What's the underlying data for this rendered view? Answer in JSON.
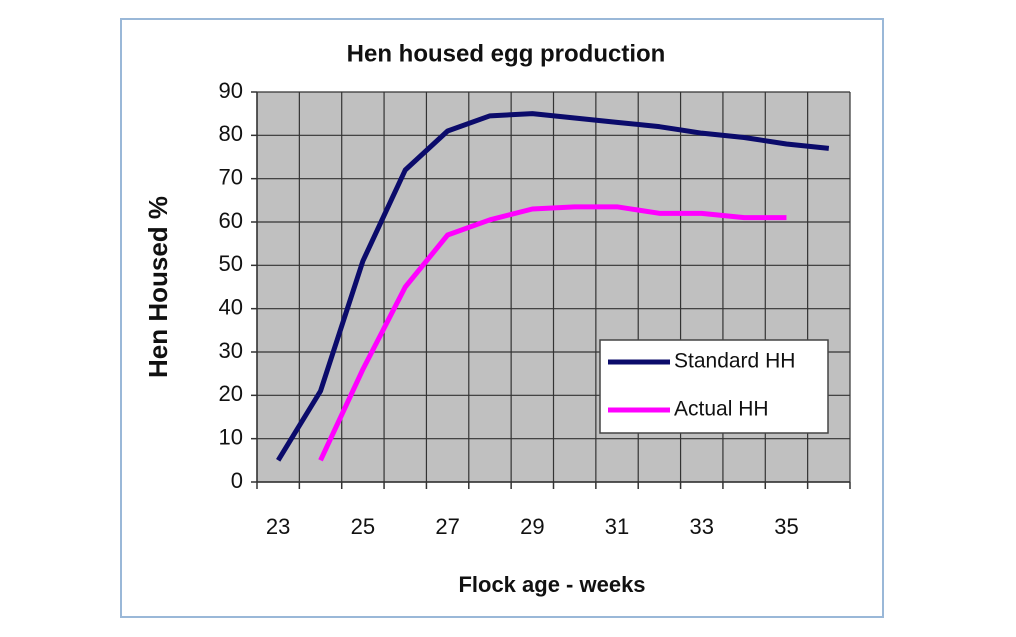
{
  "chart_data": {
    "type": "line",
    "title": "Hen housed egg production",
    "x_label": "Flock age - weeks",
    "y_label": "Hen Housed %",
    "categories": [
      "23",
      null,
      "25",
      null,
      "27",
      null,
      "29",
      null,
      "31",
      null,
      "33",
      null,
      "35",
      null
    ],
    "series": [
      {
        "name": "Standard HH",
        "color": "#0b0b6b",
        "values": [
          5,
          21,
          51,
          72,
          81,
          84.5,
          85,
          84,
          83,
          82,
          80.5,
          79.5,
          78,
          77
        ]
      },
      {
        "name": "Actual HH",
        "color": "#ff00ff",
        "values": [
          null,
          5,
          26,
          45,
          57,
          60.5,
          63,
          63.5,
          63.5,
          62,
          62,
          61,
          61,
          null
        ]
      }
    ],
    "ylim": [
      0,
      90
    ],
    "yticks": [
      0,
      10,
      20,
      30,
      40,
      50,
      60,
      70,
      80,
      90
    ],
    "grid": true,
    "legend": "right"
  }
}
